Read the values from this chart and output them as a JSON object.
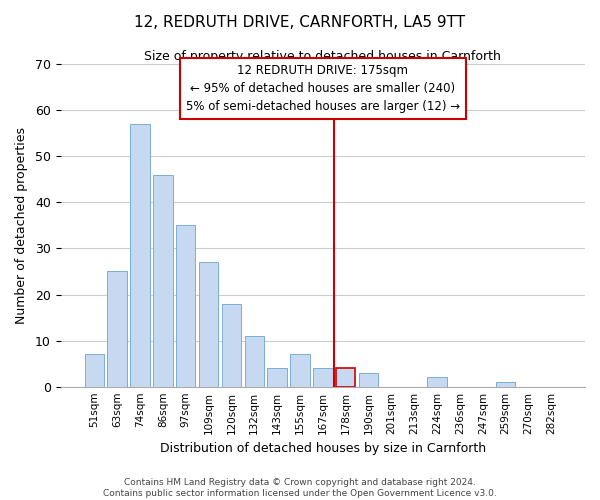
{
  "title": "12, REDRUTH DRIVE, CARNFORTH, LA5 9TT",
  "subtitle": "Size of property relative to detached houses in Carnforth",
  "xlabel": "Distribution of detached houses by size in Carnforth",
  "ylabel": "Number of detached properties",
  "bar_labels": [
    "51sqm",
    "63sqm",
    "74sqm",
    "86sqm",
    "97sqm",
    "109sqm",
    "120sqm",
    "132sqm",
    "143sqm",
    "155sqm",
    "167sqm",
    "178sqm",
    "190sqm",
    "201sqm",
    "213sqm",
    "224sqm",
    "236sqm",
    "247sqm",
    "259sqm",
    "270sqm",
    "282sqm"
  ],
  "bar_values": [
    7,
    25,
    57,
    46,
    35,
    27,
    18,
    11,
    4,
    7,
    4,
    4,
    3,
    0,
    0,
    2,
    0,
    0,
    1,
    0,
    0
  ],
  "bar_color": "#c6d9f0",
  "bar_edge_color": "#7bafd4",
  "highlight_x_label": "178sqm",
  "highlight_line_color": "#cc0000",
  "ylim": [
    0,
    70
  ],
  "yticks": [
    0,
    10,
    20,
    30,
    40,
    50,
    60,
    70
  ],
  "annotation_title": "12 REDRUTH DRIVE: 175sqm",
  "annotation_line1": "← 95% of detached houses are smaller (240)",
  "annotation_line2": "5% of semi-detached houses are larger (12) →",
  "footer_line1": "Contains HM Land Registry data © Crown copyright and database right 2024.",
  "footer_line2": "Contains public sector information licensed under the Open Government Licence v3.0.",
  "background_color": "#ffffff",
  "grid_color": "#cccccc"
}
